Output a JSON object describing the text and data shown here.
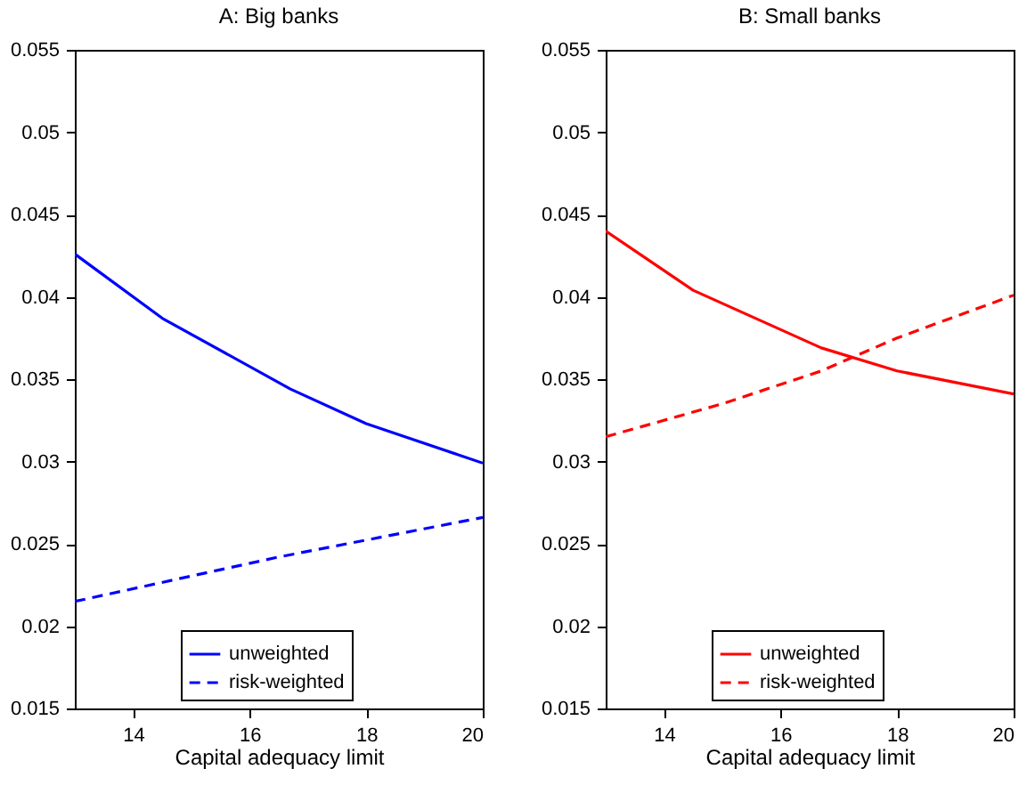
{
  "chart_data": [
    {
      "type": "line",
      "title": "A: Big banks",
      "xlabel": "Capital adequacy limit",
      "xlim": [
        13,
        20
      ],
      "xticks": [
        14,
        16,
        18,
        20
      ],
      "ylim": [
        0.015,
        0.055
      ],
      "yticks": [
        0.015,
        0.02,
        0.025,
        0.03,
        0.035,
        0.04,
        0.045,
        0.05,
        0.055
      ],
      "grid": false,
      "legend": "bottom",
      "series": [
        {
          "name": "unweighted",
          "color": "#0000ff",
          "line_style": "solid",
          "x": [
            13,
            14.5,
            16.7,
            18,
            20
          ],
          "values": [
            0.0426,
            0.0387,
            0.0344,
            0.0323,
            0.0299
          ]
        },
        {
          "name": "risk-weighted",
          "color": "#0000ff",
          "line_style": "dashed",
          "x": [
            13,
            16.5,
            20
          ],
          "values": [
            0.0215,
            0.0242,
            0.0266
          ]
        }
      ]
    },
    {
      "type": "line",
      "title": "B: Small banks",
      "xlabel": "Capital adequacy limit",
      "xlim": [
        13,
        20
      ],
      "xticks": [
        14,
        16,
        18,
        20
      ],
      "ylim": [
        0.015,
        0.055
      ],
      "yticks": [
        0.015,
        0.02,
        0.025,
        0.03,
        0.035,
        0.04,
        0.045,
        0.05,
        0.055
      ],
      "grid": false,
      "legend": "bottom",
      "series": [
        {
          "name": "unweighted",
          "color": "#ff0000",
          "line_style": "solid",
          "x": [
            13,
            14.5,
            16.7,
            18,
            20
          ],
          "values": [
            0.044,
            0.0404,
            0.0369,
            0.0355,
            0.0341
          ]
        },
        {
          "name": "risk-weighted",
          "color": "#ff0000",
          "line_style": "dashed",
          "x": [
            13,
            15,
            16.7,
            18,
            20
          ],
          "values": [
            0.0315,
            0.0335,
            0.0355,
            0.0375,
            0.0401
          ]
        }
      ]
    }
  ]
}
